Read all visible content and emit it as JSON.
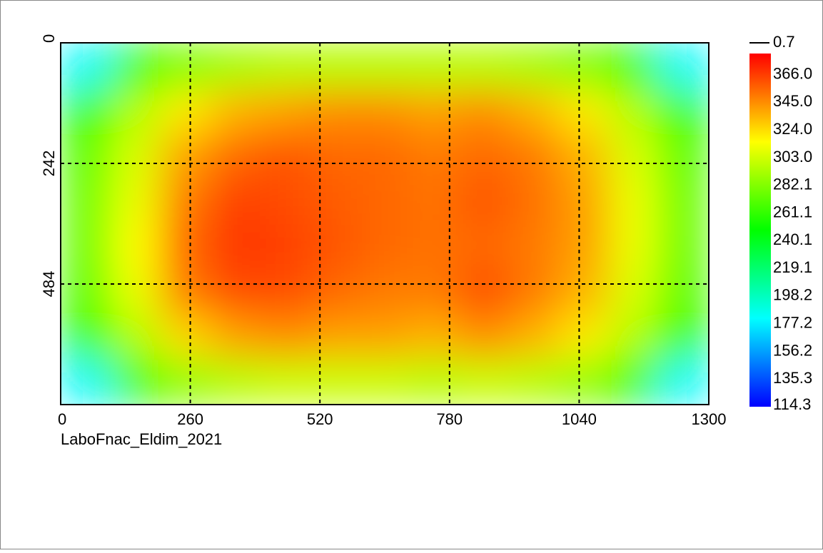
{
  "chart_data": {
    "type": "heatmap",
    "caption": "LaboFnac_Eldim_2021",
    "xlim": [
      0,
      1300
    ],
    "xticks": [
      0,
      260,
      520,
      780,
      1040,
      1300
    ],
    "ylim": [
      0,
      726
    ],
    "yticks": [
      0,
      242,
      484
    ],
    "y_reversed": true,
    "grid": true,
    "z": [
      [
        180,
        260,
        280,
        290,
        295,
        295,
        295,
        295,
        295,
        290,
        280,
        260,
        180
      ],
      [
        255,
        295,
        320,
        335,
        340,
        345,
        345,
        340,
        345,
        335,
        320,
        295,
        255
      ],
      [
        270,
        305,
        340,
        355,
        360,
        355,
        355,
        350,
        355,
        350,
        335,
        305,
        270
      ],
      [
        275,
        310,
        350,
        365,
        362,
        358,
        355,
        352,
        360,
        352,
        340,
        310,
        275
      ],
      [
        275,
        315,
        355,
        368,
        365,
        360,
        355,
        352,
        355,
        350,
        340,
        310,
        275
      ],
      [
        270,
        310,
        350,
        362,
        362,
        355,
        350,
        350,
        362,
        350,
        335,
        305,
        270
      ],
      [
        255,
        295,
        325,
        340,
        345,
        340,
        340,
        335,
        345,
        335,
        320,
        295,
        255
      ],
      [
        180,
        260,
        285,
        295,
        300,
        300,
        300,
        295,
        300,
        295,
        285,
        260,
        180
      ]
    ],
    "colormap": [
      "#0000ff",
      "#00ffff",
      "#00ff00",
      "#ffff00",
      "#ff0000"
    ],
    "zlim": [
      114.3,
      382
    ],
    "zticks": [
      {
        "value": 366.0,
        "label": "366.0"
      },
      {
        "value": 345.0,
        "label": "345.0"
      },
      {
        "value": 324.0,
        "label": "324.0"
      },
      {
        "value": 303.0,
        "label": "303.0"
      },
      {
        "value": 282.1,
        "label": "282.1"
      },
      {
        "value": 261.1,
        "label": "261.1"
      },
      {
        "value": 240.1,
        "label": "240.1"
      },
      {
        "value": 219.1,
        "label": "219.1"
      },
      {
        "value": 198.2,
        "label": "198.2"
      },
      {
        "value": 177.2,
        "label": "177.2"
      },
      {
        "value": 156.2,
        "label": "156.2"
      },
      {
        "value": 135.3,
        "label": "135.3"
      },
      {
        "value": 114.3,
        "label": "114.3"
      }
    ],
    "out_of_range_tick": {
      "value": 0.7,
      "label": "0.7"
    }
  }
}
